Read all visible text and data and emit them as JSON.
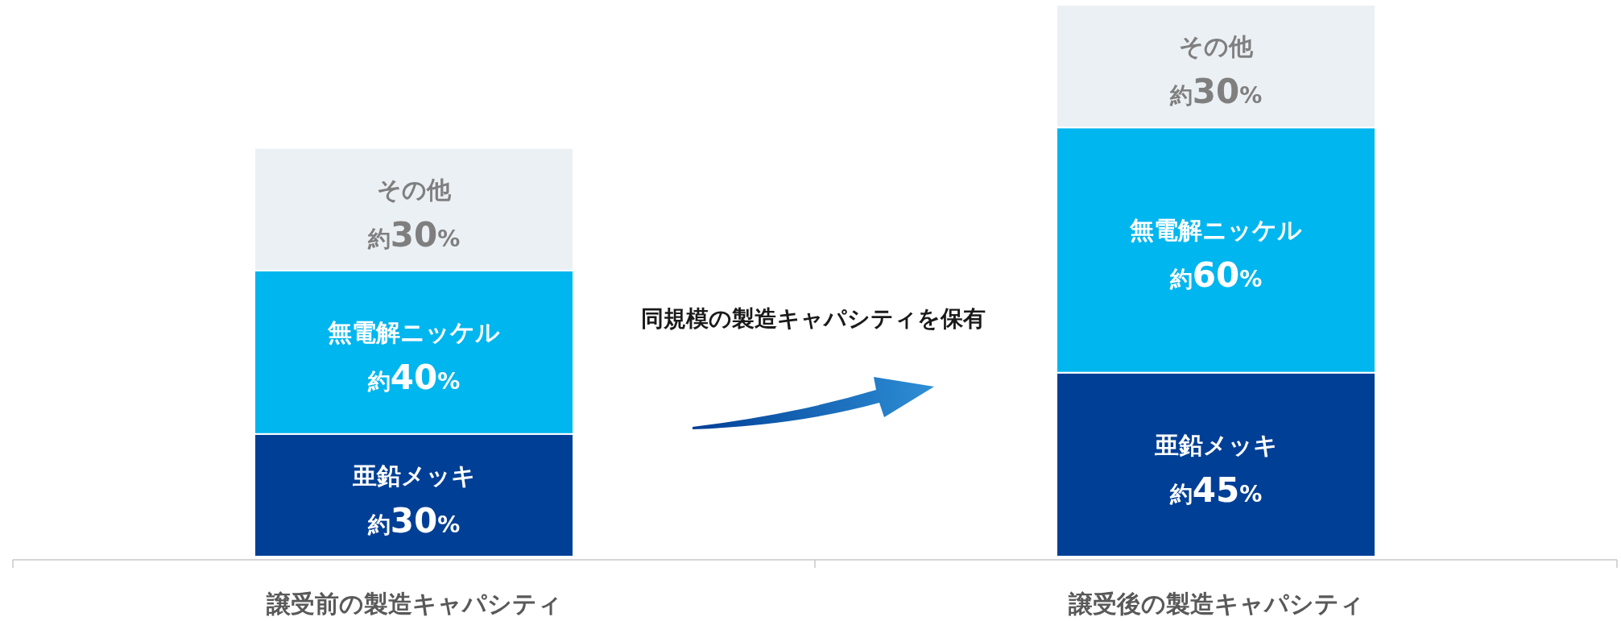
{
  "chart_data": {
    "type": "bar",
    "stacked": true,
    "categories": [
      "譲受前の製造キャパシティ",
      "譲受後の製造キャパシティ"
    ],
    "series": [
      {
        "name": "亜鉛メッキ",
        "color": "#003f96",
        "values": [
          30,
          45
        ],
        "value_labels": [
          "約30%",
          "約45%"
        ]
      },
      {
        "name": "無電解ニッケル",
        "color": "#00b6ef",
        "values": [
          40,
          60
        ],
        "value_labels": [
          "約40%",
          "約60%"
        ]
      },
      {
        "name": "その他",
        "color": "#ebf0f4",
        "values": [
          30,
          30
        ],
        "value_labels": [
          "約30%",
          "約30%"
        ]
      }
    ],
    "annotations": [
      "同規模の製造キャパシティを保有"
    ]
  }
}
